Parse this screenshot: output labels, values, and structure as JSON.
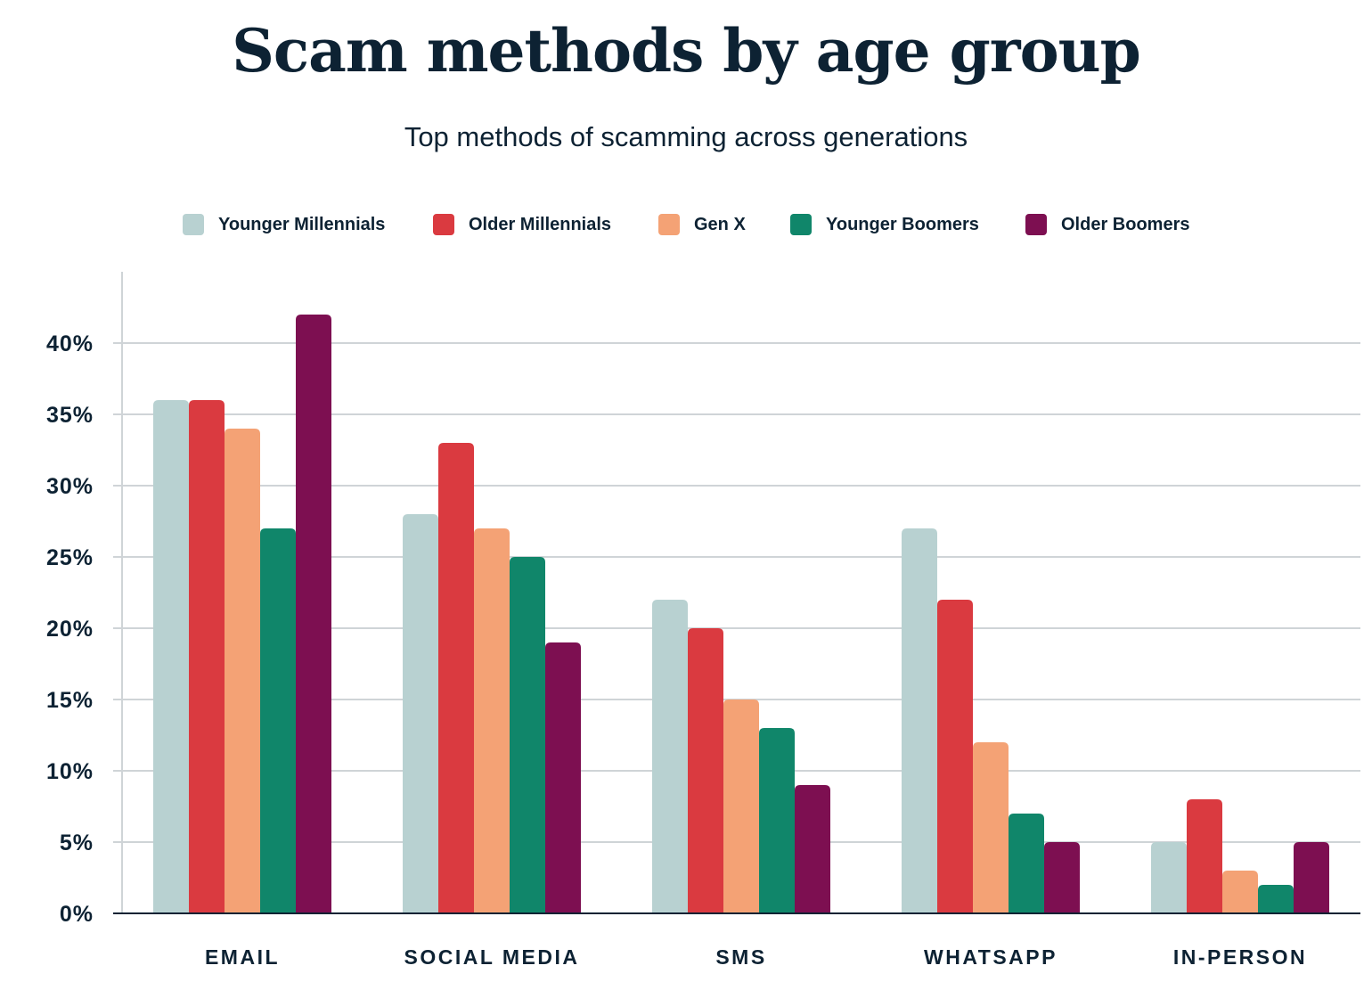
{
  "chart_data": {
    "type": "bar",
    "title": "Scam methods by age group",
    "subtitle": "Top methods of scamming across generations",
    "categories": [
      "EMAIL",
      "SOCIAL MEDIA",
      "SMS",
      "WHATSAPP",
      "IN-PERSON"
    ],
    "series": [
      {
        "name": "Younger Millennials",
        "color": "#b8d1d1",
        "values": [
          36,
          28,
          22,
          27,
          5
        ]
      },
      {
        "name": "Older Millennials",
        "color": "#da3a40",
        "values": [
          36,
          33,
          20,
          22,
          8
        ]
      },
      {
        "name": "Gen X",
        "color": "#f4a275",
        "values": [
          34,
          27,
          15,
          12,
          3
        ]
      },
      {
        "name": "Younger Boomers",
        "color": "#10866a",
        "values": [
          27,
          25,
          13,
          7,
          2
        ]
      },
      {
        "name": "Older Boomers",
        "color": "#7d0f51",
        "values": [
          42,
          19,
          9,
          5,
          5
        ]
      }
    ],
    "yticks": [
      "0%",
      "5%",
      "10%",
      "15%",
      "20%",
      "25%",
      "30%",
      "35%",
      "40%"
    ],
    "ylim": [
      0,
      45
    ],
    "unit": "%",
    "grid": true,
    "legend_position": "top"
  }
}
